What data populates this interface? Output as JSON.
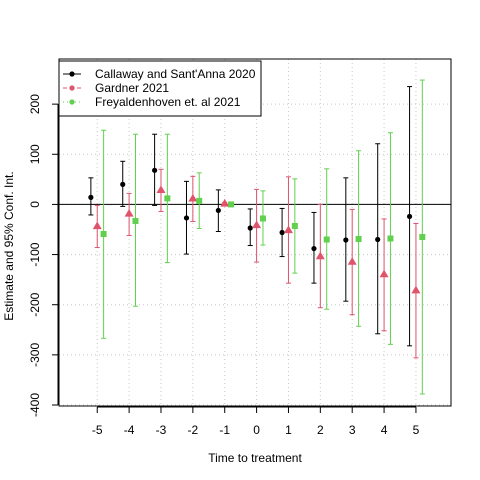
{
  "chart_data": {
    "type": "scatter",
    "xlabel": "Time to treatment",
    "ylabel": "Estimate and 95% Conf. Int.",
    "x_ticks": [
      -5,
      -4,
      -3,
      -2,
      -1,
      0,
      1,
      2,
      3,
      4,
      5
    ],
    "y_ticks": [
      -400,
      -300,
      -200,
      -100,
      0,
      100,
      200
    ],
    "xlim": [
      -6.2,
      6.1
    ],
    "ylim": [
      -402,
      290
    ],
    "grid": true,
    "reference_line_y": 0,
    "legend_position": "top-left",
    "series": [
      {
        "name": "Callaway and Sant'Anna 2020",
        "color": "#000000",
        "marker": "circle",
        "offset": -0.2,
        "points": [
          {
            "x": -5,
            "y": 14,
            "lo": -21,
            "hi": 53
          },
          {
            "x": -4,
            "y": 40,
            "lo": -4,
            "hi": 86
          },
          {
            "x": -3,
            "y": 68,
            "lo": -2,
            "hi": 140
          },
          {
            "x": -2,
            "y": -27,
            "lo": -99,
            "hi": 46
          },
          {
            "x": -1,
            "y": -12,
            "lo": -54,
            "hi": 29
          },
          {
            "x": 0,
            "y": -47,
            "lo": -82,
            "hi": -9
          },
          {
            "x": 1,
            "y": -56,
            "lo": -104,
            "hi": -8
          },
          {
            "x": 2,
            "y": -88,
            "lo": -157,
            "hi": -16
          },
          {
            "x": 3,
            "y": -71,
            "lo": -193,
            "hi": 53
          },
          {
            "x": 4,
            "y": -70,
            "lo": -258,
            "hi": 121
          },
          {
            "x": 5,
            "y": -24,
            "lo": -282,
            "hi": 235
          }
        ]
      },
      {
        "name": "Gardner 2021",
        "color": "#DF536B",
        "marker": "triangle",
        "offset": 0.0,
        "points": [
          {
            "x": -5,
            "y": -43,
            "lo": -86,
            "hi": -2
          },
          {
            "x": -4,
            "y": -18,
            "lo": -62,
            "hi": 22
          },
          {
            "x": -3,
            "y": 29,
            "lo": -14,
            "hi": 70
          },
          {
            "x": -2,
            "y": 12,
            "lo": -34,
            "hi": 56
          },
          {
            "x": -1,
            "y": 2,
            "lo": -1,
            "hi": 4
          },
          {
            "x": 0,
            "y": -41,
            "lo": -115,
            "hi": 30
          },
          {
            "x": 1,
            "y": -51,
            "lo": -157,
            "hi": 55
          },
          {
            "x": 2,
            "y": -103,
            "lo": -206,
            "hi": 0
          },
          {
            "x": 3,
            "y": -114,
            "lo": -220,
            "hi": -10
          },
          {
            "x": 4,
            "y": -139,
            "lo": -252,
            "hi": -29
          },
          {
            "x": 5,
            "y": -171,
            "lo": -306,
            "hi": -38
          }
        ]
      },
      {
        "name": "Freyaldenhoven et. al 2021",
        "color": "#61D04F",
        "marker": "square",
        "offset": 0.2,
        "points": [
          {
            "x": -5,
            "y": -59,
            "lo": -267,
            "hi": 148
          },
          {
            "x": -4,
            "y": -33,
            "lo": -203,
            "hi": 140
          },
          {
            "x": -3,
            "y": 12,
            "lo": -116,
            "hi": 140
          },
          {
            "x": -2,
            "y": 7,
            "lo": -48,
            "hi": 63
          },
          {
            "x": -1,
            "y": 0,
            "lo": 0,
            "hi": 0
          },
          {
            "x": 0,
            "y": -28,
            "lo": -81,
            "hi": 27
          },
          {
            "x": 1,
            "y": -43,
            "lo": -137,
            "hi": 51
          },
          {
            "x": 2,
            "y": -70,
            "lo": -209,
            "hi": 71
          },
          {
            "x": 3,
            "y": -69,
            "lo": -243,
            "hi": 107
          },
          {
            "x": 4,
            "y": -68,
            "lo": -279,
            "hi": 143
          },
          {
            "x": 5,
            "y": -65,
            "lo": -378,
            "hi": 248
          }
        ]
      }
    ]
  }
}
